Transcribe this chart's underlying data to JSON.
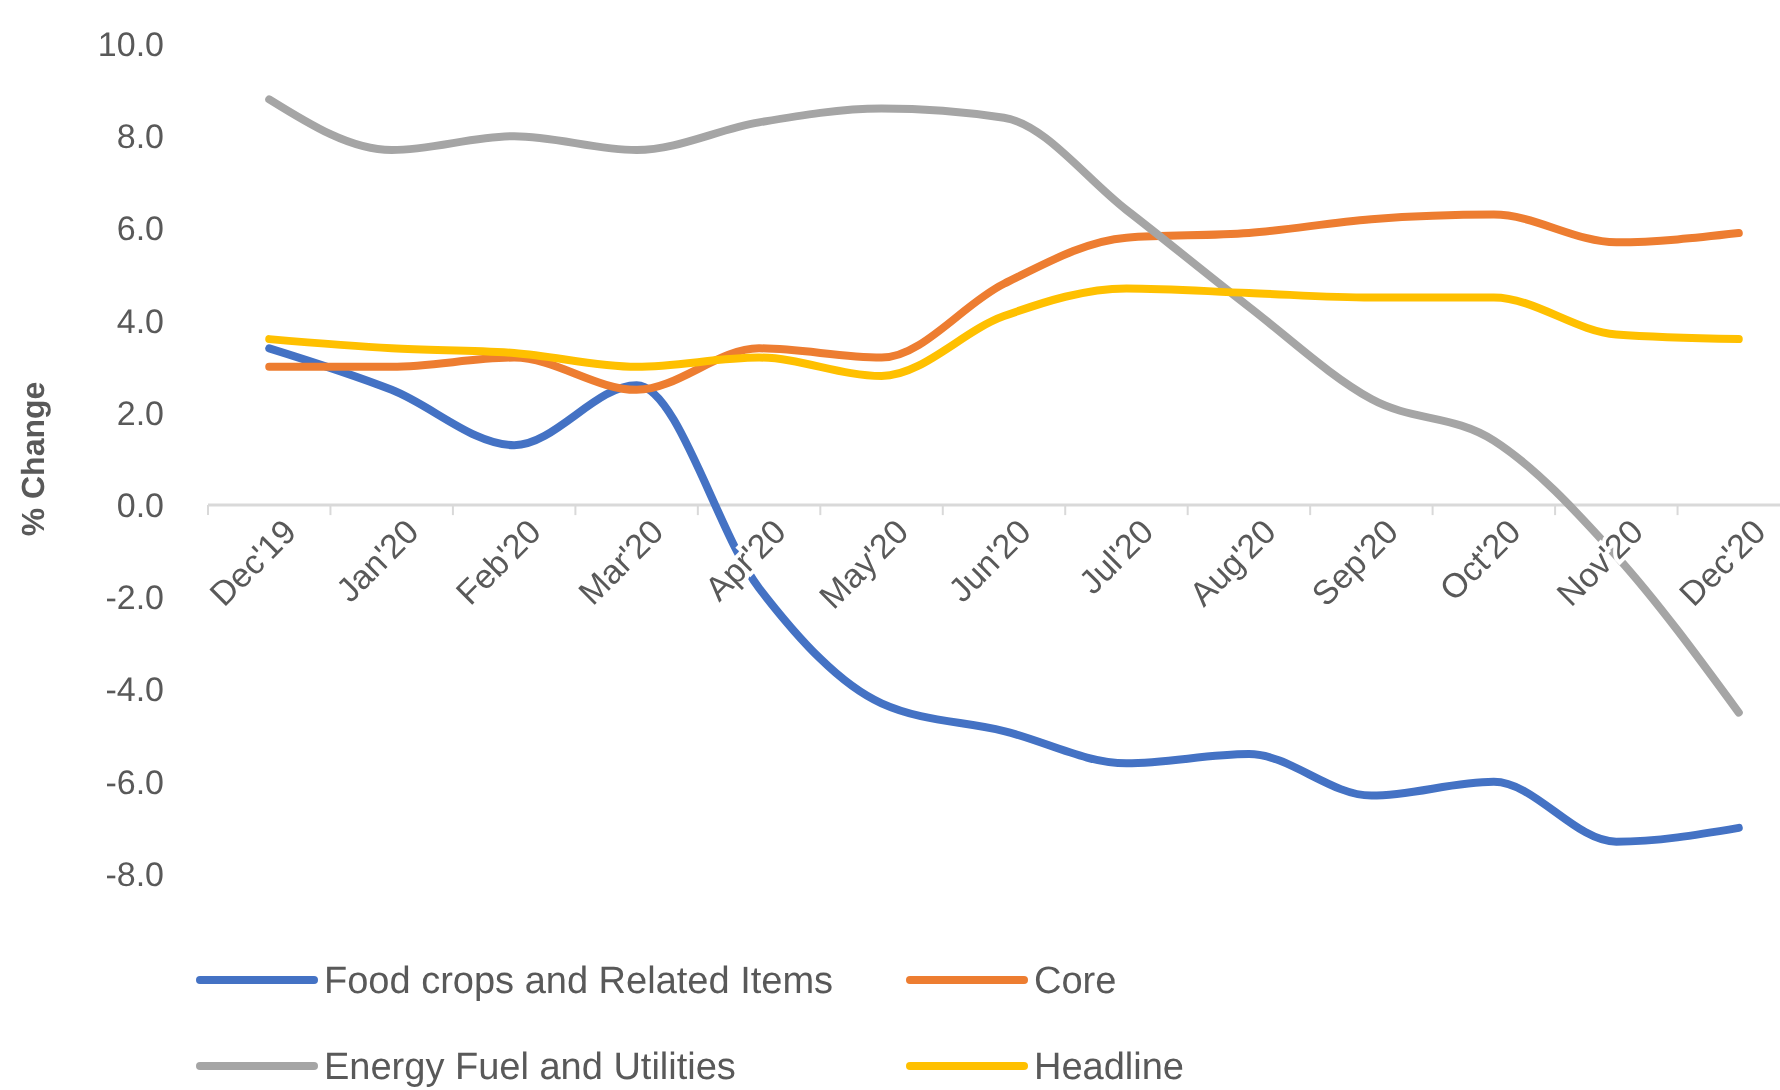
{
  "chart_data": {
    "type": "line",
    "ylabel": "% Change",
    "categories": [
      "Dec'19",
      "Jan'20",
      "Feb'20",
      "Mar'20",
      "Apr'20",
      "May'20",
      "Jun'20",
      "Jul'20",
      "Aug'20",
      "Sep'20",
      "Oct'20",
      "Nov'20",
      "Dec'20"
    ],
    "series": [
      {
        "name": "Food crops and Related Items",
        "color": "#4472c4",
        "values": [
          3.4,
          2.5,
          1.3,
          2.6,
          -1.8,
          -4.3,
          -4.9,
          -5.6,
          -5.4,
          -6.3,
          -6.0,
          -7.3,
          -7.0
        ]
      },
      {
        "name": "Core",
        "color": "#ed7d31",
        "values": [
          3.0,
          3.0,
          3.2,
          2.5,
          3.4,
          3.2,
          4.8,
          5.8,
          5.9,
          6.2,
          6.3,
          5.7,
          5.9
        ]
      },
      {
        "name": "Energy Fuel and Utilities",
        "color": "#a5a5a5",
        "values": [
          8.8,
          7.7,
          8.0,
          7.7,
          8.3,
          8.6,
          8.4,
          6.4,
          4.3,
          2.3,
          1.4,
          -1.1,
          -4.5
        ]
      },
      {
        "name": "Headline",
        "color": "#ffc000",
        "values": [
          3.6,
          3.4,
          3.3,
          3.0,
          3.2,
          2.8,
          4.1,
          4.7,
          4.6,
          4.5,
          4.5,
          3.7,
          3.6
        ]
      }
    ],
    "ylim": [
      -8,
      10
    ],
    "yticks": [
      {
        "value": -8,
        "label": "-8.0"
      },
      {
        "value": -6,
        "label": "-6.0"
      },
      {
        "value": -4,
        "label": "-4.0"
      },
      {
        "value": -2,
        "label": "-2.0"
      },
      {
        "value": 0,
        "label": "0.0"
      },
      {
        "value": 2,
        "label": "2.0"
      },
      {
        "value": 4,
        "label": "4.0"
      },
      {
        "value": 6,
        "label": "6.0"
      },
      {
        "value": 8,
        "label": "8.0"
      },
      {
        "value": 10,
        "label": "10.0"
      }
    ],
    "grid": false,
    "legend": "bottom",
    "marker": "none",
    "line_style": "solid"
  }
}
